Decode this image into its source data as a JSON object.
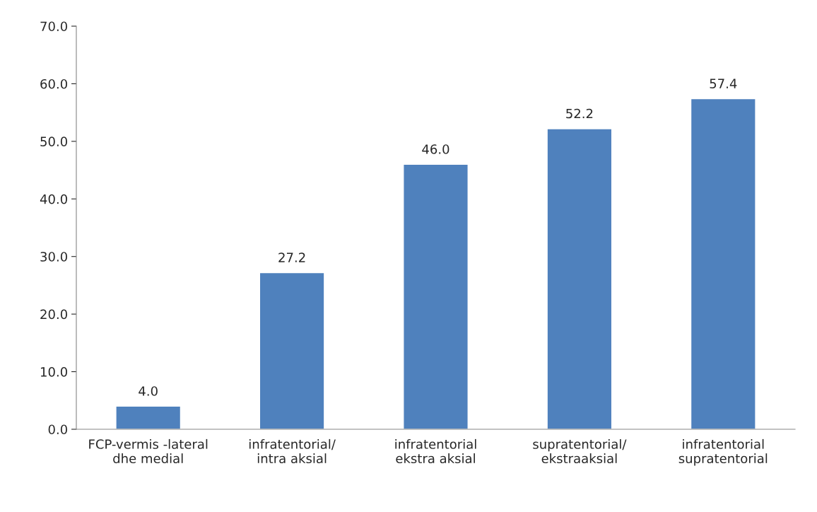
{
  "chart_data": {
    "type": "bar",
    "categories": [
      "FCP-vermis -lateral\ndhe medial",
      "infratentorial/\nintra aksial",
      "infratentorial\nekstra aksial",
      "supratentorial/\nekstraaksial",
      "infratentorial\nsupratentorial"
    ],
    "values": [
      4.0,
      27.2,
      46.0,
      52.2,
      57.4
    ],
    "value_labels": [
      "4.0",
      "27.2",
      "46.0",
      "52.2",
      "57.4"
    ],
    "color": "#4f81bd",
    "ylim": [
      0,
      70
    ],
    "yticks": [
      {
        "value": 0,
        "label": "0.0"
      },
      {
        "value": 10,
        "label": "10.0"
      },
      {
        "value": 20,
        "label": "20.0"
      },
      {
        "value": 30,
        "label": "30.0"
      },
      {
        "value": 40,
        "label": "40.0"
      },
      {
        "value": 50,
        "label": "50.0"
      },
      {
        "value": 60,
        "label": "60.0"
      },
      {
        "value": 70,
        "label": "70.0"
      }
    ],
    "grid": false,
    "legend": false
  }
}
